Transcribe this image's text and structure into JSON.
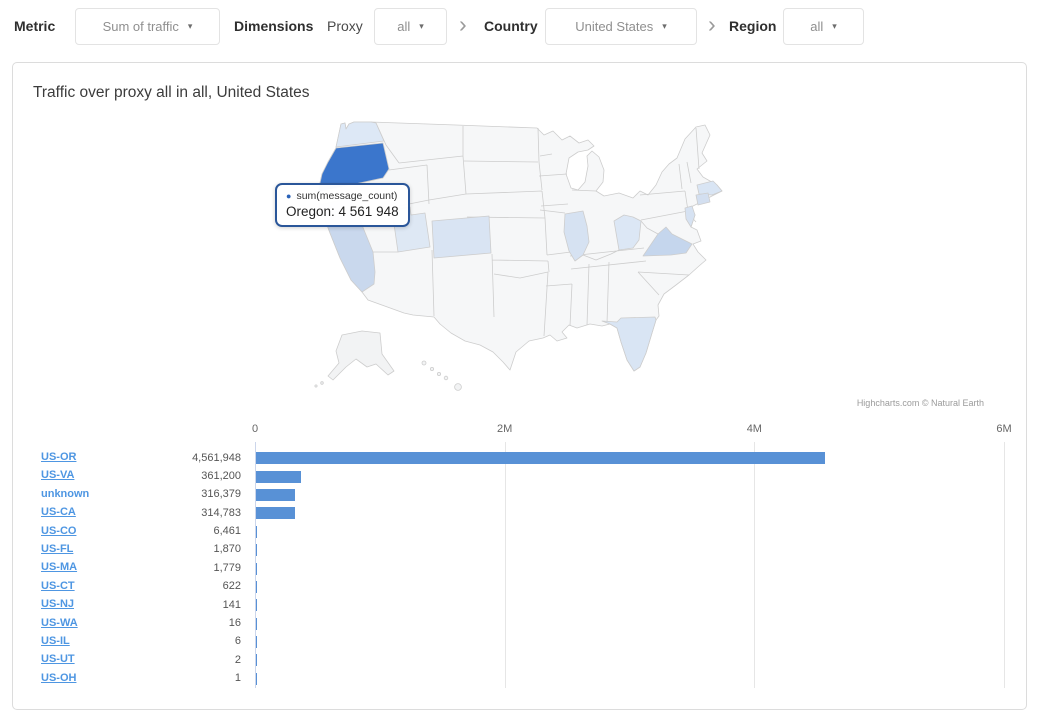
{
  "filter_bar": {
    "metric_label": "Metric",
    "metric_value": "Sum of traffic",
    "dimensions_label": "Dimensions",
    "proxy_label": "Proxy",
    "proxy_value": "all",
    "country_label": "Country",
    "country_value": "United States",
    "region_label": "Region",
    "region_value": "all"
  },
  "icons": {
    "caret_down": "▾",
    "chevron_right": "›",
    "series_marker": "●"
  },
  "panel": {
    "title": "Traffic over proxy all in all, United States",
    "attribution": "Highcharts.com © Natural Earth"
  },
  "tooltip": {
    "series_label": "sum(message_count)",
    "point_label": "Oregon: 4 561 948"
  },
  "colors": {
    "bar": "#5891d6",
    "map_highlight": "#3b76cc",
    "map_shade_strong": "#c5d6ed",
    "map_shade_light": "#dbe6f4",
    "link": "#4e96e2",
    "axis_line": "#ccd6eb",
    "gridline": "#e6e6e6"
  },
  "chart_data": [
    {
      "type": "heatmap",
      "subtype": "us-choropleth-map",
      "series_name": "sum(message_count)",
      "hovered_point": {
        "region": "Oregon",
        "value": 4561948,
        "value_label": "4 561 948"
      },
      "shaded_regions": [
        "Washington",
        "Oregon",
        "California",
        "Utah",
        "Colorado",
        "Illinois",
        "Ohio",
        "Virginia",
        "Florida",
        "Massachusetts",
        "Connecticut",
        "New Jersey"
      ],
      "attribution": "Highcharts.com © Natural Earth"
    },
    {
      "type": "bar",
      "orientation": "horizontal",
      "title": "Traffic over proxy all in all, United States",
      "categories": [
        "US-OR",
        "US-VA",
        "unknown",
        "US-CA",
        "US-CO",
        "US-FL",
        "US-MA",
        "US-CT",
        "US-NJ",
        "US-WA",
        "US-IL",
        "US-UT",
        "US-OH"
      ],
      "values": [
        4561948,
        361200,
        316379,
        314783,
        6461,
        1870,
        1779,
        622,
        141,
        16,
        6,
        2,
        1
      ],
      "value_labels": [
        "4,561,948",
        "361,200",
        "316,379",
        "314,783",
        "6,461",
        "1,870",
        "1,779",
        "622",
        "141",
        "16",
        "6",
        "2",
        "1"
      ],
      "non_link_categories": [
        "unknown"
      ],
      "x_ticks": [
        "0",
        "2M",
        "4M",
        "6M"
      ],
      "xlim": [
        0,
        6000000
      ],
      "bar_color": "#5891d6",
      "xlabel": "",
      "ylabel": ""
    }
  ]
}
